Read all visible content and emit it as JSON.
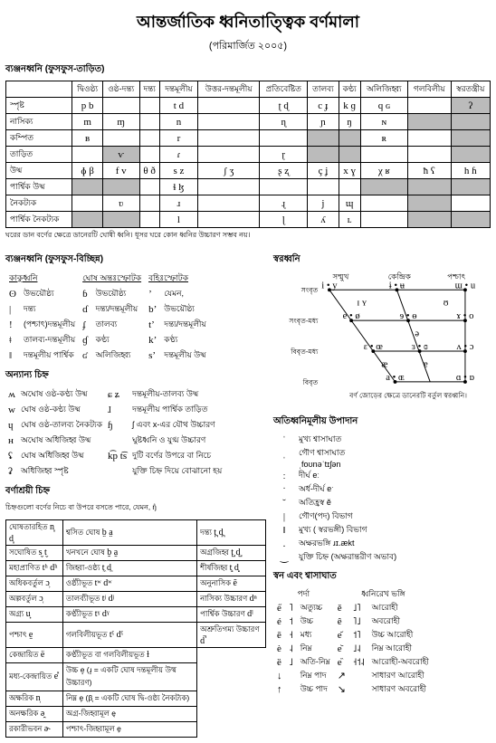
{
  "title": "আন্তর্জাতিক ধ্বনিতাত্ত্বিক বর্ণমালা",
  "subtitle": "(পরিমার্জিত ২০০৫)",
  "consonants": {
    "heading": "ব্যঞ্জনধ্বনি (ফুসফুস-তাড়িত)",
    "cols": [
      "দ্বিওষ্ঠ্য",
      "ওষ্ঠ-দন্ত্য",
      "দন্ত্য",
      "দন্তমূলীয়",
      "উত্তর-দন্তমূলীয়",
      "প্রতিবেষ্টিত",
      "তালব্য",
      "কণ্ঠ্য",
      "অলিজিহ্ব্য",
      "গলবিলীয়",
      "স্বরতন্ত্রীয়"
    ],
    "rows": [
      {
        "name": "স্পৃষ্ট",
        "cells": [
          "p b",
          "",
          "",
          "t d",
          "",
          "ʈ ɖ",
          "c ɟ",
          "k ɡ",
          "q ɢ",
          "",
          "ʔ"
        ]
      },
      {
        "name": "নাসিক্য",
        "cells": [
          "m",
          "ɱ",
          "",
          "n",
          "",
          "ɳ",
          "ɲ",
          "ŋ",
          "ɴ",
          "",
          ""
        ]
      },
      {
        "name": "কম্পিত",
        "cells": [
          "ʙ",
          "",
          "",
          "r",
          "",
          "",
          "",
          "",
          "ʀ",
          "",
          ""
        ]
      },
      {
        "name": "তাড়িত",
        "cells": [
          "",
          "ⱱ",
          "",
          "ɾ",
          "",
          "ɽ",
          "",
          "",
          "",
          "",
          ""
        ]
      },
      {
        "name": "উষ্ম",
        "cells": [
          "ɸ β",
          "f v",
          "θ ð",
          "s z",
          "ʃ ʒ",
          "ʂ ʐ",
          "ç ʝ",
          "x ɣ",
          "χ ʁ",
          "ħ ʕ",
          "h ɦ"
        ]
      },
      {
        "name": "পার্শ্বিক উষ্ম",
        "cells": [
          "",
          "",
          "",
          "ɬ ɮ",
          "",
          "",
          "",
          "",
          "",
          "",
          ""
        ]
      },
      {
        "name": "নৈকট্যক",
        "cells": [
          "",
          "ʋ",
          "",
          "ɹ",
          "",
          "ɻ",
          "j",
          "ɰ",
          "",
          "",
          ""
        ]
      },
      {
        "name": "পার্শ্বিক নৈকট্যক",
        "cells": [
          "",
          "",
          "",
          "l",
          "",
          "ɭ",
          "ʎ",
          "ʟ",
          "",
          "",
          ""
        ]
      }
    ],
    "grey": [
      [
        0,
        10
      ],
      [
        1,
        9
      ],
      [
        1,
        10
      ],
      [
        2,
        6
      ],
      [
        2,
        7
      ],
      [
        2,
        10
      ],
      [
        3,
        1
      ],
      [
        3,
        6
      ],
      [
        3,
        7
      ],
      [
        3,
        10
      ],
      [
        5,
        0
      ],
      [
        5,
        1
      ],
      [
        5,
        8
      ],
      [
        5,
        9
      ],
      [
        5,
        10
      ],
      [
        6,
        9
      ],
      [
        7,
        0
      ],
      [
        7,
        1
      ],
      [
        7,
        9
      ],
      [
        7,
        10
      ]
    ],
    "footnote": "ঘরের ডান বর্ণের ক্ষেত্রে ডানেরটি ঘোষী ধ্বনি। ধূসর ঘরে কোন ধ্বনির উচ্চারণ সম্ভব নয়।"
  },
  "nonpulm": {
    "heading": "ব্যঞ্জনধ্বনি (ফুসফুস-বিচ্ছিন্ন)",
    "cols": [
      "কাকুধ্বনি",
      "ঘোষ অন্তঃস্ফোটক",
      "বহিঃস্ফোটক"
    ],
    "rows": [
      [
        "ʘ",
        "উভয়ৌষ্ঠ্য",
        "ɓ",
        "উভয়ৌষ্ঠ্য",
        "ʼ",
        "যেমন,"
      ],
      [
        "|",
        "দন্ত্য",
        "ɗ",
        "দন্ত্য/দন্তমূলীয়",
        "bʼ",
        "উভয়ৌষ্ঠ্য"
      ],
      [
        "!",
        "(পশ্চাৎ)দন্তমূলীয়",
        "ʄ",
        "তালব্য",
        "tʼ",
        "দন্ত্য/দন্তমূলীয়"
      ],
      [
        "ǂ",
        "তালব্য-দন্তমূলীয়",
        "ɠ",
        "কণ্ঠ্য",
        "kʼ",
        "কণ্ঠ্য"
      ],
      [
        "ǁ",
        "দন্তমূলীয় পার্শ্বিক",
        "ʛ",
        "অলিজিহ্ব্য",
        "sʼ",
        "দন্তমূলীয় উষ্ম"
      ]
    ]
  },
  "other": {
    "heading": "অন্যান্য চিহ্ন",
    "rows": [
      [
        "ʍ",
        "অঘোষ ওষ্ঠ-কণ্ঠ্য উষ্ম",
        "ɕ ʑ",
        "দন্তমূলীয়-তালব্য উষ্ম"
      ],
      [
        "w",
        "ঘোষ ওষ্ঠ-কণ্ঠ্য উষ্ম",
        "ɺ",
        "দন্তমূলীয় পার্শ্বিক তাড়িত"
      ],
      [
        "ɥ",
        "ঘোষ ওষ্ঠ-তালব্য নৈকট্যক",
        "ɧ",
        "ʃ এবং x-এর যৌথ উচ্চারণ"
      ],
      [
        "ʜ",
        "অঘোষ অধিজিহ্ব উষ্ম",
        "",
        "ঘুষ্টধ্বনি ও যুগ্ম উচ্চারণ"
      ],
      [
        "ʢ",
        "ঘোষ অধিজিহ্ব উষ্ম",
        "k͡p t͡s",
        "দুটি বর্ণের উপরে বা নিচে"
      ],
      [
        "ʡ",
        "অধিজিহ্ব স্পৃষ্ট",
        "",
        "যুক্তি চিহ্ন দিয়ে বোঝানো হয়"
      ]
    ]
  },
  "vowels": {
    "heading": "স্বরধ্বনি",
    "cols": [
      "সম্মুখ",
      "কেন্দ্রিক",
      "পশ্চাৎ"
    ],
    "rows": [
      "সংবৃত",
      "সংবৃত-মধ্য",
      "বিবৃত-মধ্য",
      "বিবৃত"
    ],
    "footnote": "বর্ণ জোড়ের ক্ষেত্রে ডানেরটি বর্তুল স্বরধ্বনি।"
  },
  "supra": {
    "heading": "অতিধ্বনিমূলীয় উপাদান",
    "rows": [
      [
        "ˈ",
        "মুখ্য শ্বাসাঘাত"
      ],
      [
        "ˌ",
        "গৌণ শ্বাসাঘাত"
      ],
      [
        "",
        "ˌfoʊnəˈtɪʃən"
      ],
      [
        "ː",
        "দীর্ঘ    eː"
      ],
      [
        "ˑ",
        "অর্ধ-দীর্ঘ    eˑ"
      ],
      [
        "˘",
        "অতিহ্রস্ব    ĕ"
      ],
      [
        "|",
        "গৌণ(পদ) বিভাগ"
      ],
      [
        "‖",
        "মুখ্য ( স্বরভঙ্গী) বিভাগ"
      ],
      [
        ".",
        "অক্ষরভঙ্গি    ɹɪ.ækt"
      ],
      [
        "‿",
        "যুক্তি চিহ্ন (অক্ষরান্তরীণ অভাব)"
      ]
    ]
  },
  "diacritics": {
    "heading": "বর্ণাশ্রয়ী চিহ্ন",
    "note": "চিহ্নগুলো বর্ণের নিচে বা উপরে বসতে পারে, যেমন, ŋ̊",
    "rows": [
      [
        "ঘোষতারহিত",
        "n̥ d̥",
        "শ্বসিত ঘোষ",
        "b̤ a̤",
        "দন্ত্য",
        "t̪ d̪"
      ],
      [
        "সঘোষিত",
        "s̬ t̬",
        "খনখনে ঘোষ",
        "b̰ a̰",
        "অগ্রজিহ্ব",
        "t̺ d̺"
      ],
      [
        "মহাপ্রাণিত",
        "tʰ dʰ",
        "জিহ্বা-ওষ্ঠ্য",
        "t̼ d̼",
        "শীর্ষজিহ্ব",
        "t̻ d̻"
      ],
      [
        "অধিকবর্তুল",
        "ɔ̹",
        "ওষ্ঠ্যীভূত",
        "tʷ dʷ",
        "অনুনাসিক",
        "ẽ"
      ],
      [
        "অল্পবর্তুল",
        "ɔ̜",
        "তালব্যীভূত",
        "tʲ dʲ",
        "নাসিক্য উচ্চারণ",
        "dⁿ"
      ],
      [
        "অগ্র্য",
        "u̟",
        "কণ্ঠ্যীভূত",
        "tˠ dˠ",
        "পার্শ্বিক উচ্চারণ",
        "dˡ"
      ],
      [
        "পশ্চাৎ",
        "e̠",
        "গলবিলীয়ভূত",
        "tˤ dˤ",
        "অশ্রুতিগম্য উচ্চারণ",
        "d̚"
      ],
      [
        "কেন্দ্রায়িত",
        "ë",
        "কণ্ঠ্যীভূত বা গলবিলীয়ভূত",
        "ɫ",
        "",
        ""
      ],
      [
        "মধ্য-কেন্দ্রায়িত",
        "e̽",
        "উচ্চ  e̝ (ɹ̝ = একটি ঘোষ দন্তমূলীয় উষ্ম উচ্চারণ)",
        "",
        "",
        ""
      ],
      [
        "অক্ষরিক",
        "n̩",
        "নিম্ন  e̞ (β̞ = একটি ঘোষ দ্বি-ওষ্ঠ্য নৈকট্যক)",
        "",
        "",
        ""
      ],
      [
        "অনক্ষরিক",
        "ə̯",
        "অগ্র-জিহ্বামূল  e̘",
        "",
        "",
        ""
      ],
      [
        "রকারীভবন",
        "ə˞",
        "পশ্চাৎ-জিহ্বামূল  e̙",
        "",
        "",
        ""
      ]
    ]
  },
  "tones": {
    "heading": "স্বন এবং শ্বাসাঘাত",
    "col1": "পর্দা",
    "col2": "ধ্বনিরেখ ভঙ্গি",
    "rows": [
      [
        "e̋",
        "˥",
        "অত্যুচ্চ",
        "ě",
        "˩˥",
        "আরোহী"
      ],
      [
        "é",
        "˦",
        "উচ্চ",
        "ê",
        "˥˩",
        "অবরোহী"
      ],
      [
        "ē",
        "˧",
        "মধ্য",
        "e᷄",
        "˦˥",
        "উচ্চ আরোহী"
      ],
      [
        "è",
        "˨",
        "নিম্ন",
        "e᷅",
        "˩˨",
        "নিম্ন আরোহী"
      ],
      [
        "ȅ",
        "˩",
        "অতি-নিম্ন",
        "e᷈",
        "˧˦˨",
        "আরোহী-অবরোহী"
      ],
      [
        "↓",
        "",
        "নিম্ন পাদ",
        "↗",
        "",
        "সাধারণ আরোহী"
      ],
      [
        "↑",
        "",
        "উচ্চ পাদ",
        "↘",
        "",
        "সাধারণ অবরোহী"
      ]
    ]
  }
}
